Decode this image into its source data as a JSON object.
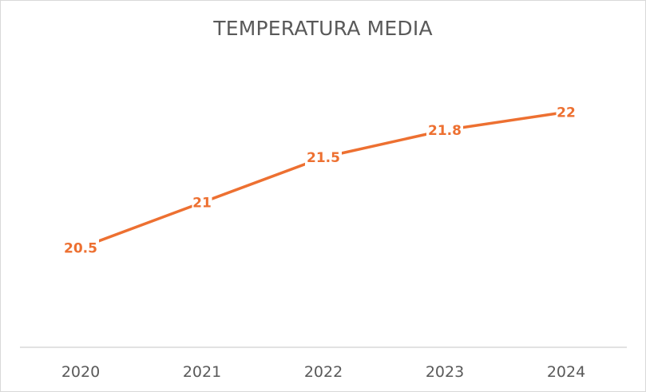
{
  "chart_data": {
    "type": "line",
    "title": "TEMPERATURA MEDIA",
    "xlabel": "",
    "ylabel": "",
    "categories": [
      "2020",
      "2021",
      "2022",
      "2023",
      "2024"
    ],
    "series": [
      {
        "values": [
          20.5,
          21,
          21.5,
          21.8,
          22
        ],
        "value_labels": [
          "20.5",
          "21",
          "21.5",
          "21.8",
          "22"
        ],
        "color": "#ed7031"
      }
    ],
    "ylim": [
      19.4,
      22.7
    ],
    "grid": false,
    "legend": "none",
    "axis_color": "#d9d9d9",
    "text_color": "#595959"
  }
}
